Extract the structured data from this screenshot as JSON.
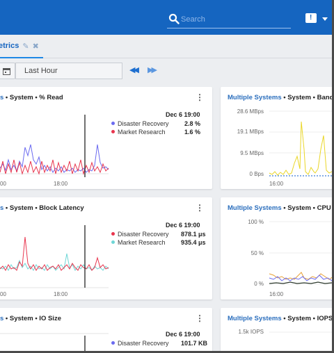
{
  "search": {
    "placeholder": "Search"
  },
  "tab": {
    "label": "etrics"
  },
  "toolbar": {
    "time_range": "Last Hour"
  },
  "colors": {
    "brand": "#1565c0",
    "series_blue": "#6b6bf0",
    "series_red": "#e8354e",
    "series_cyan": "#6fd6d6",
    "series_yellow": "#ead627"
  },
  "panels": [
    {
      "title_prefix": "s",
      "title_rest": " • System • % Read",
      "date": "Dec 6 19:00",
      "legend": [
        {
          "name": "Disaster Recovery",
          "value": "2.8 %",
          "color": "#6b6bf0"
        },
        {
          "name": "Market Research",
          "value": "1.6 %",
          "color": "#e8354e"
        }
      ],
      "x_ticks": [
        "00",
        "18:00"
      ]
    },
    {
      "title_prefix": "Multiple Systems",
      "title_rest": " • System • Bandw",
      "y_ticks": [
        "28.6 MBps",
        "19.1 MBps",
        "9.5 MBps",
        "0 Bps"
      ],
      "x_ticks": [
        "16:00"
      ]
    },
    {
      "title_prefix": "s",
      "title_rest": " • System • Block Latency",
      "date": "Dec 6 19:00",
      "legend": [
        {
          "name": "Disaster Recovery",
          "value": "878.1 μs",
          "color": "#e8354e"
        },
        {
          "name": "Market Research",
          "value": "935.4 μs",
          "color": "#6fd6d6"
        }
      ],
      "x_ticks": [
        "00",
        "18:00"
      ]
    },
    {
      "title_prefix": "Multiple Systems",
      "title_rest": " • System • CPU Ut",
      "y_ticks": [
        "100 %",
        "50 %",
        "0 %"
      ],
      "x_ticks": [
        "16:00"
      ]
    },
    {
      "title_prefix": "s",
      "title_rest": " • System • IO Size",
      "date": "Dec 6 19:00",
      "legend": [
        {
          "name": "Disaster Recovery",
          "value": "101.7 KB",
          "color": "#6b6bf0"
        }
      ]
    },
    {
      "title_prefix": "Multiple Systems",
      "title_rest": " • System • IOPS",
      "y_ticks": [
        "1.5k IOPS"
      ]
    }
  ]
}
